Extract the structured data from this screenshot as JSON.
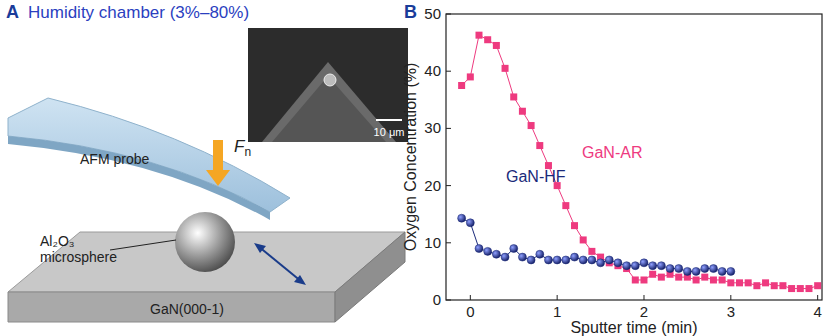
{
  "panel_a": {
    "label": "A",
    "chamber_label": "Humidity chamber (3%–80%)",
    "probe_label": "AFM probe",
    "force_label": {
      "main": "F",
      "subscript": "n"
    },
    "microsphere_label": [
      "Al₂O₃",
      "microsphere"
    ],
    "substrate_label": "GaN(000-1)",
    "scale_bar_label": "10 μm"
  },
  "chart_data": {
    "type": "line",
    "title": "B",
    "x_label": "Sputter time (min)",
    "y_label": "Oxygen Concentration (%)",
    "xlim": [
      -0.28,
      4.05
    ],
    "xticks": [
      0,
      1,
      2,
      3,
      4
    ],
    "ylim": [
      0,
      50
    ],
    "yticks": [
      0,
      10,
      20,
      30,
      40,
      50
    ],
    "grid": false,
    "series": [
      {
        "name": "GaN-AR",
        "color": "#ee3a7f",
        "marker": "square",
        "line_style": "solid",
        "x": [
          -0.1,
          0,
          0.1,
          0.2,
          0.3,
          0.4,
          0.5,
          0.6,
          0.7,
          0.8,
          0.9,
          1.0,
          1.1,
          1.2,
          1.3,
          1.4,
          1.5,
          1.6,
          1.7,
          1.8,
          1.9,
          2.0,
          2.1,
          2.2,
          2.3,
          2.4,
          2.5,
          2.6,
          2.7,
          2.8,
          2.9,
          3.0,
          3.1,
          3.2,
          3.3,
          3.4,
          3.5,
          3.6,
          3.7,
          3.8,
          3.9,
          4.0
        ],
        "values": [
          37.5,
          39,
          46.3,
          45.5,
          44.5,
          40.5,
          35.5,
          33,
          30.5,
          27,
          23.5,
          20,
          16.5,
          13,
          10.5,
          8.5,
          7.5,
          6.5,
          6,
          5.5,
          3.5,
          3.5,
          4.5,
          4,
          4.5,
          4,
          4,
          3.5,
          4,
          3.5,
          3.5,
          3,
          3,
          3,
          2.5,
          3,
          2.5,
          2.5,
          2,
          2,
          2,
          2.5
        ]
      },
      {
        "name": "GaN-HF",
        "color": "#1a2a7a",
        "marker": "circle",
        "line_style": "solid",
        "x": [
          -0.1,
          0,
          0.1,
          0.2,
          0.3,
          0.4,
          0.5,
          0.6,
          0.7,
          0.8,
          0.9,
          1.0,
          1.1,
          1.2,
          1.3,
          1.4,
          1.5,
          1.6,
          1.7,
          1.8,
          1.9,
          2.0,
          2.1,
          2.2,
          2.3,
          2.4,
          2.5,
          2.6,
          2.7,
          2.8,
          2.9,
          3.0
        ],
        "values": [
          14.3,
          13.5,
          9,
          8.5,
          8,
          7.5,
          9,
          7.5,
          7,
          8,
          7,
          7,
          7,
          7.5,
          7,
          7,
          6.5,
          7,
          6.5,
          6,
          6,
          6.5,
          6,
          6,
          5.5,
          5.5,
          5,
          5,
          5.5,
          5.5,
          5,
          5
        ]
      }
    ]
  }
}
